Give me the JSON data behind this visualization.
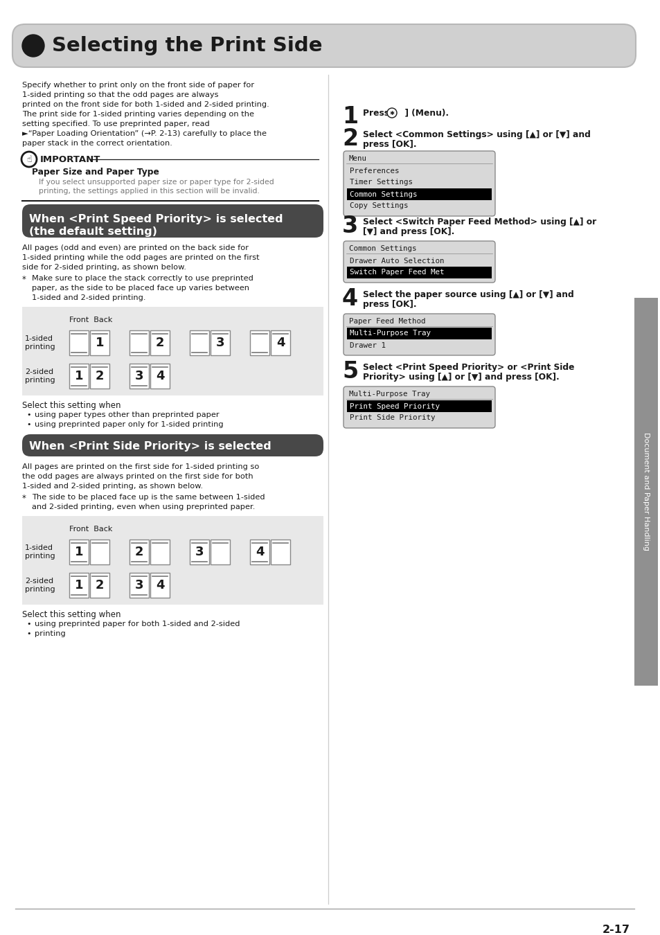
{
  "title": "Selecting the Print Side",
  "bg_color": "#ffffff",
  "page_number": "2-17",
  "intro_text": [
    "Specify whether to print only on the front side of paper for",
    "1-sided printing so that the odd pages are always",
    "printed on the front side for both 1-sided and 2-sided printing.",
    "The print side for 1-sided printing varies depending on the",
    "setting specified. To use preprinted paper, read",
    "►“Paper Loading Orientation” (→P. 2-13) carefully to place the",
    "paper stack in the correct orientation."
  ],
  "important_title": "IMPORTANT",
  "important_subtitle": "Paper Size and Paper Type",
  "important_text": [
    "If you select unsupported paper size or paper type for 2-sided",
    "printing, the settings applied in this section will be invalid."
  ],
  "s1_title_1": "When <Print Speed Priority> is selected",
  "s1_title_2": "(the default setting)",
  "s1_body": [
    "All pages (odd and even) are printed on the back side for",
    "1-sided printing while the odd pages are printed on the first",
    "side for 2-sided printing, as shown below."
  ],
  "s1_note": [
    "Make sure to place the stack correctly to use preprinted",
    "paper, as the side to be placed face up varies between",
    "1-sided and 2-sided printing."
  ],
  "s1_select": "Select this setting when",
  "s1_bullets": [
    "using paper types other than preprinted paper",
    "using preprinted paper only for 1-sided printing"
  ],
  "s2_title": "When <Print Side Priority> is selected",
  "s2_body": [
    "All pages are printed on the first side for 1-sided printing so",
    "the odd pages are always printed on the first side for both",
    "1-sided and 2-sided printing, as shown below."
  ],
  "s2_note": [
    "The side to be placed face up is the same between 1-sided",
    "and 2-sided printing, even when using preprinted paper."
  ],
  "s2_select": "Select this setting when",
  "s2_bullets": [
    "using preprinted paper for both 1-sided and 2-sided",
    "printing"
  ],
  "step1_lines": [
    "Press [   ] (Menu)."
  ],
  "step2_lines": [
    "Select <Common Settings> using [▲] or [▼] and",
    "press [OK]."
  ],
  "step3_lines": [
    "Select <Switch Paper Feed Method> using [▲] or",
    "[▼] and press [OK]."
  ],
  "step4_lines": [
    "Select the paper source using [▲] or [▼] and",
    "press [OK]."
  ],
  "step5_lines": [
    "Select <Print Speed Priority> or <Print Side",
    "Priority> using [▲] or [▼] and press [OK]."
  ],
  "menu1_title": "Menu",
  "menu1_items": [
    "Preferences",
    "Timer Settings",
    "Common Settings",
    "Copy Settings"
  ],
  "menu1_hi": 2,
  "menu2_title": "Common Settings",
  "menu2_items": [
    "Drawer Auto Selection",
    "Switch Paper Feed Met"
  ],
  "menu2_hi": 1,
  "menu3_title": "Paper Feed Method",
  "menu3_items": [
    "Multi-Purpose Tray",
    "Drawer 1"
  ],
  "menu3_hi": 0,
  "menu4_title": "Multi-Purpose Tray",
  "menu4_items": [
    "Print Speed Priority",
    "Print Side Priority"
  ],
  "menu4_hi": 0,
  "sidebar_text": "Document and Paper Handling",
  "section_dark": "#484848",
  "diag_bg": "#e8e8e8",
  "menu_bg": "#d8d8d8",
  "menu_hi": "#000000",
  "header_bg": "#d0d0d0"
}
